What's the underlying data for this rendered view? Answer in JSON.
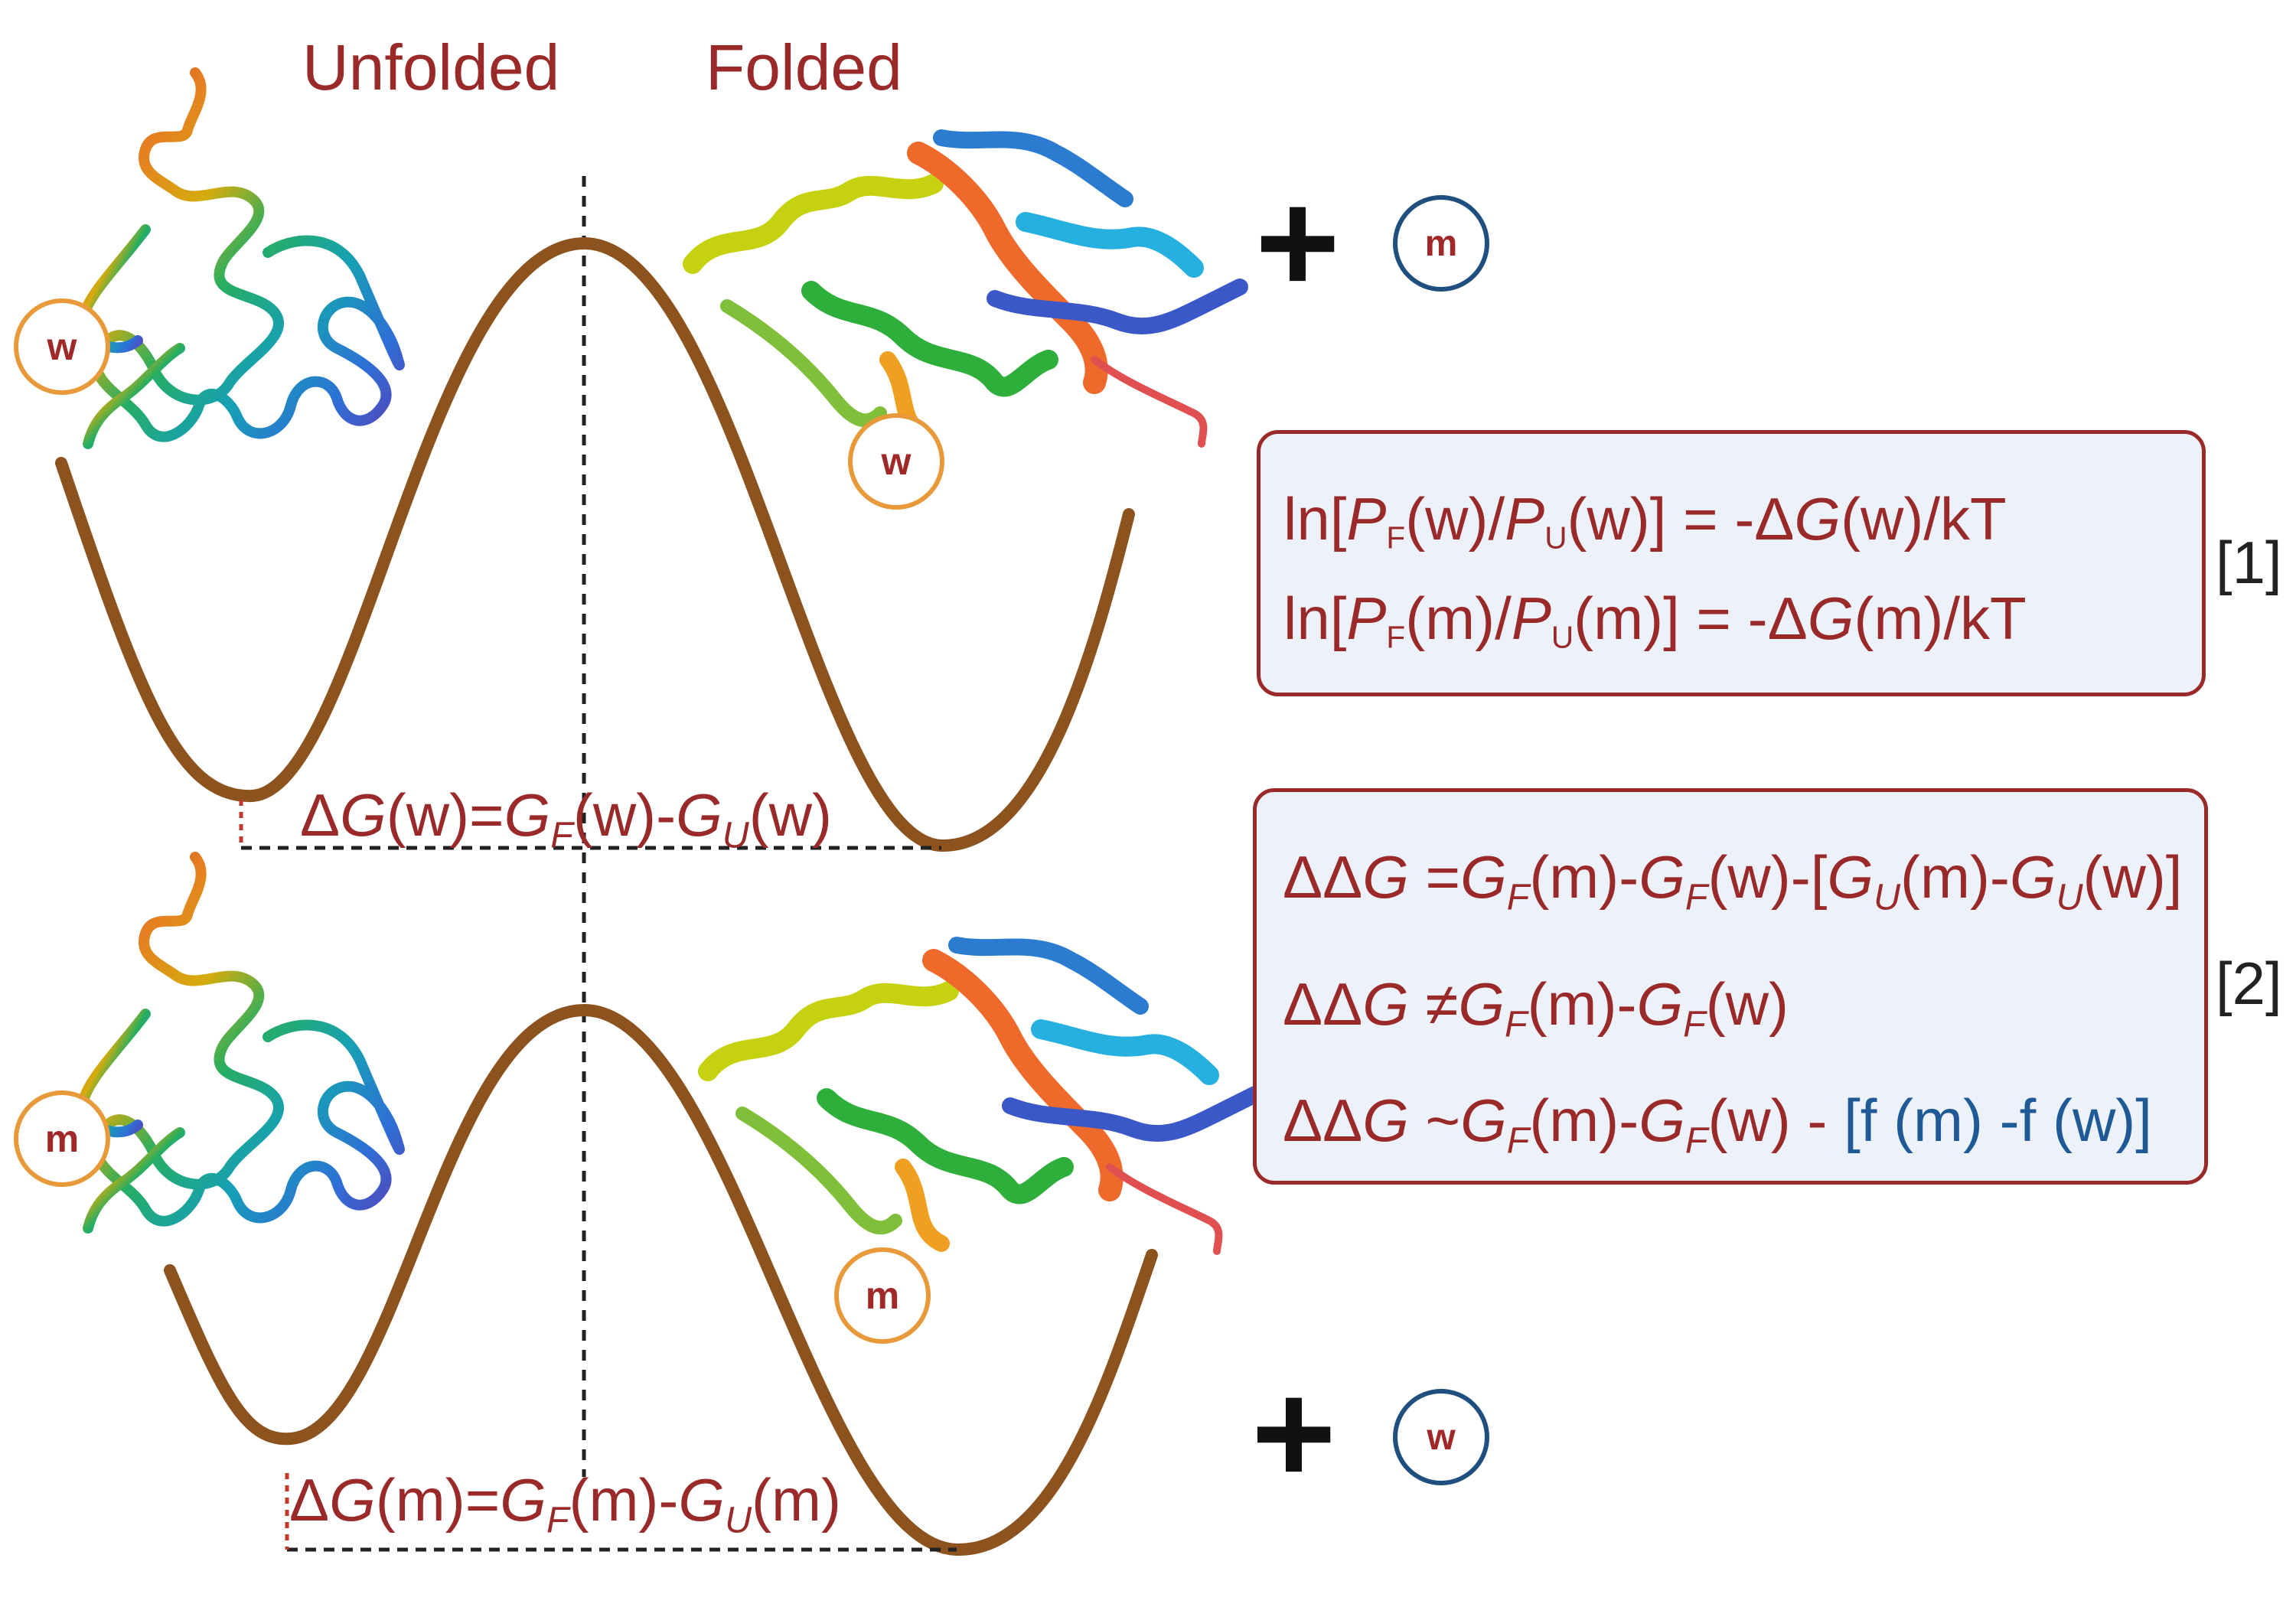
{
  "headers": {
    "unfolded": "Unfolded",
    "folded": "Folded"
  },
  "top_panel": {
    "plus": "+",
    "free_circle": "m",
    "unfolded_residue": "w",
    "folded_residue": "w",
    "delta_g": {
      "prefix": "Δ",
      "g": "G",
      "paren": "(w)=",
      "gf": "G",
      "f_sub": "F",
      "mid": "(w)-",
      "gu": "G",
      "u_sub": "U",
      "end": "(w)"
    }
  },
  "bottom_panel": {
    "plus": "+",
    "free_circle": "w",
    "unfolded_residue": "m",
    "folded_residue": "m",
    "delta_g": {
      "prefix": "Δ",
      "g": "G",
      "paren": "(m)=",
      "gf": "G",
      "f_sub": "F",
      "mid": "(m)-",
      "gu": "G",
      "u_sub": "U",
      "end": "(m)"
    }
  },
  "equation_box_1": {
    "number": "[1]",
    "line1": {
      "a": "ln[",
      "p": "P",
      "f": "F",
      "b": "(w)/",
      "p2": "P",
      "u": "U",
      "c": "(w)] = -Δ",
      "g": "G",
      "d": "(w)/kT"
    },
    "line2": {
      "a": "ln[",
      "p": "P",
      "f": "F",
      "b": "(m)/",
      "p2": "P",
      "u": "U",
      "c": "(m)] = -Δ",
      "g": "G",
      "d": "(m)/kT"
    }
  },
  "equation_box_2": {
    "number": "[2]",
    "line1": {
      "ddg": "ΔΔ",
      "g": "G",
      "op": " =",
      "gf1": "G",
      "f1": "F",
      "t1": "(m)-",
      "gf2": "G",
      "f2": "F",
      "t2": "(w)-[",
      "gu1": "G",
      "u1": "U",
      "t3": "(m)-",
      "gu2": "G",
      "u2": "U",
      "t4": "(w)]"
    },
    "line2": {
      "ddg": "ΔΔ",
      "g": "G",
      "op": " ≠",
      "gf1": "G",
      "f1": "F",
      "t1": "(m)-",
      "gf2": "G",
      "f2": "F",
      "t2": "(w)"
    },
    "line3": {
      "ddg": "ΔΔ",
      "g": "G",
      "op": " ~",
      "gf1": "G",
      "f1": "F",
      "t1": "(m)-",
      "gf2": "G",
      "f2": "F",
      "t2": "(w) - ",
      "blue": "[f (m) -f (w)]"
    }
  },
  "colors": {
    "curve": "#8c531f",
    "text": "#9a2a2a",
    "box_fill": "#edf2fa",
    "orange": "#e89a3a",
    "navy": "#1f4f7e",
    "blue_text": "#1f5a96"
  },
  "icons": [
    "unfolded-protein-icon",
    "folded-protein-icon",
    "plus-icon"
  ]
}
